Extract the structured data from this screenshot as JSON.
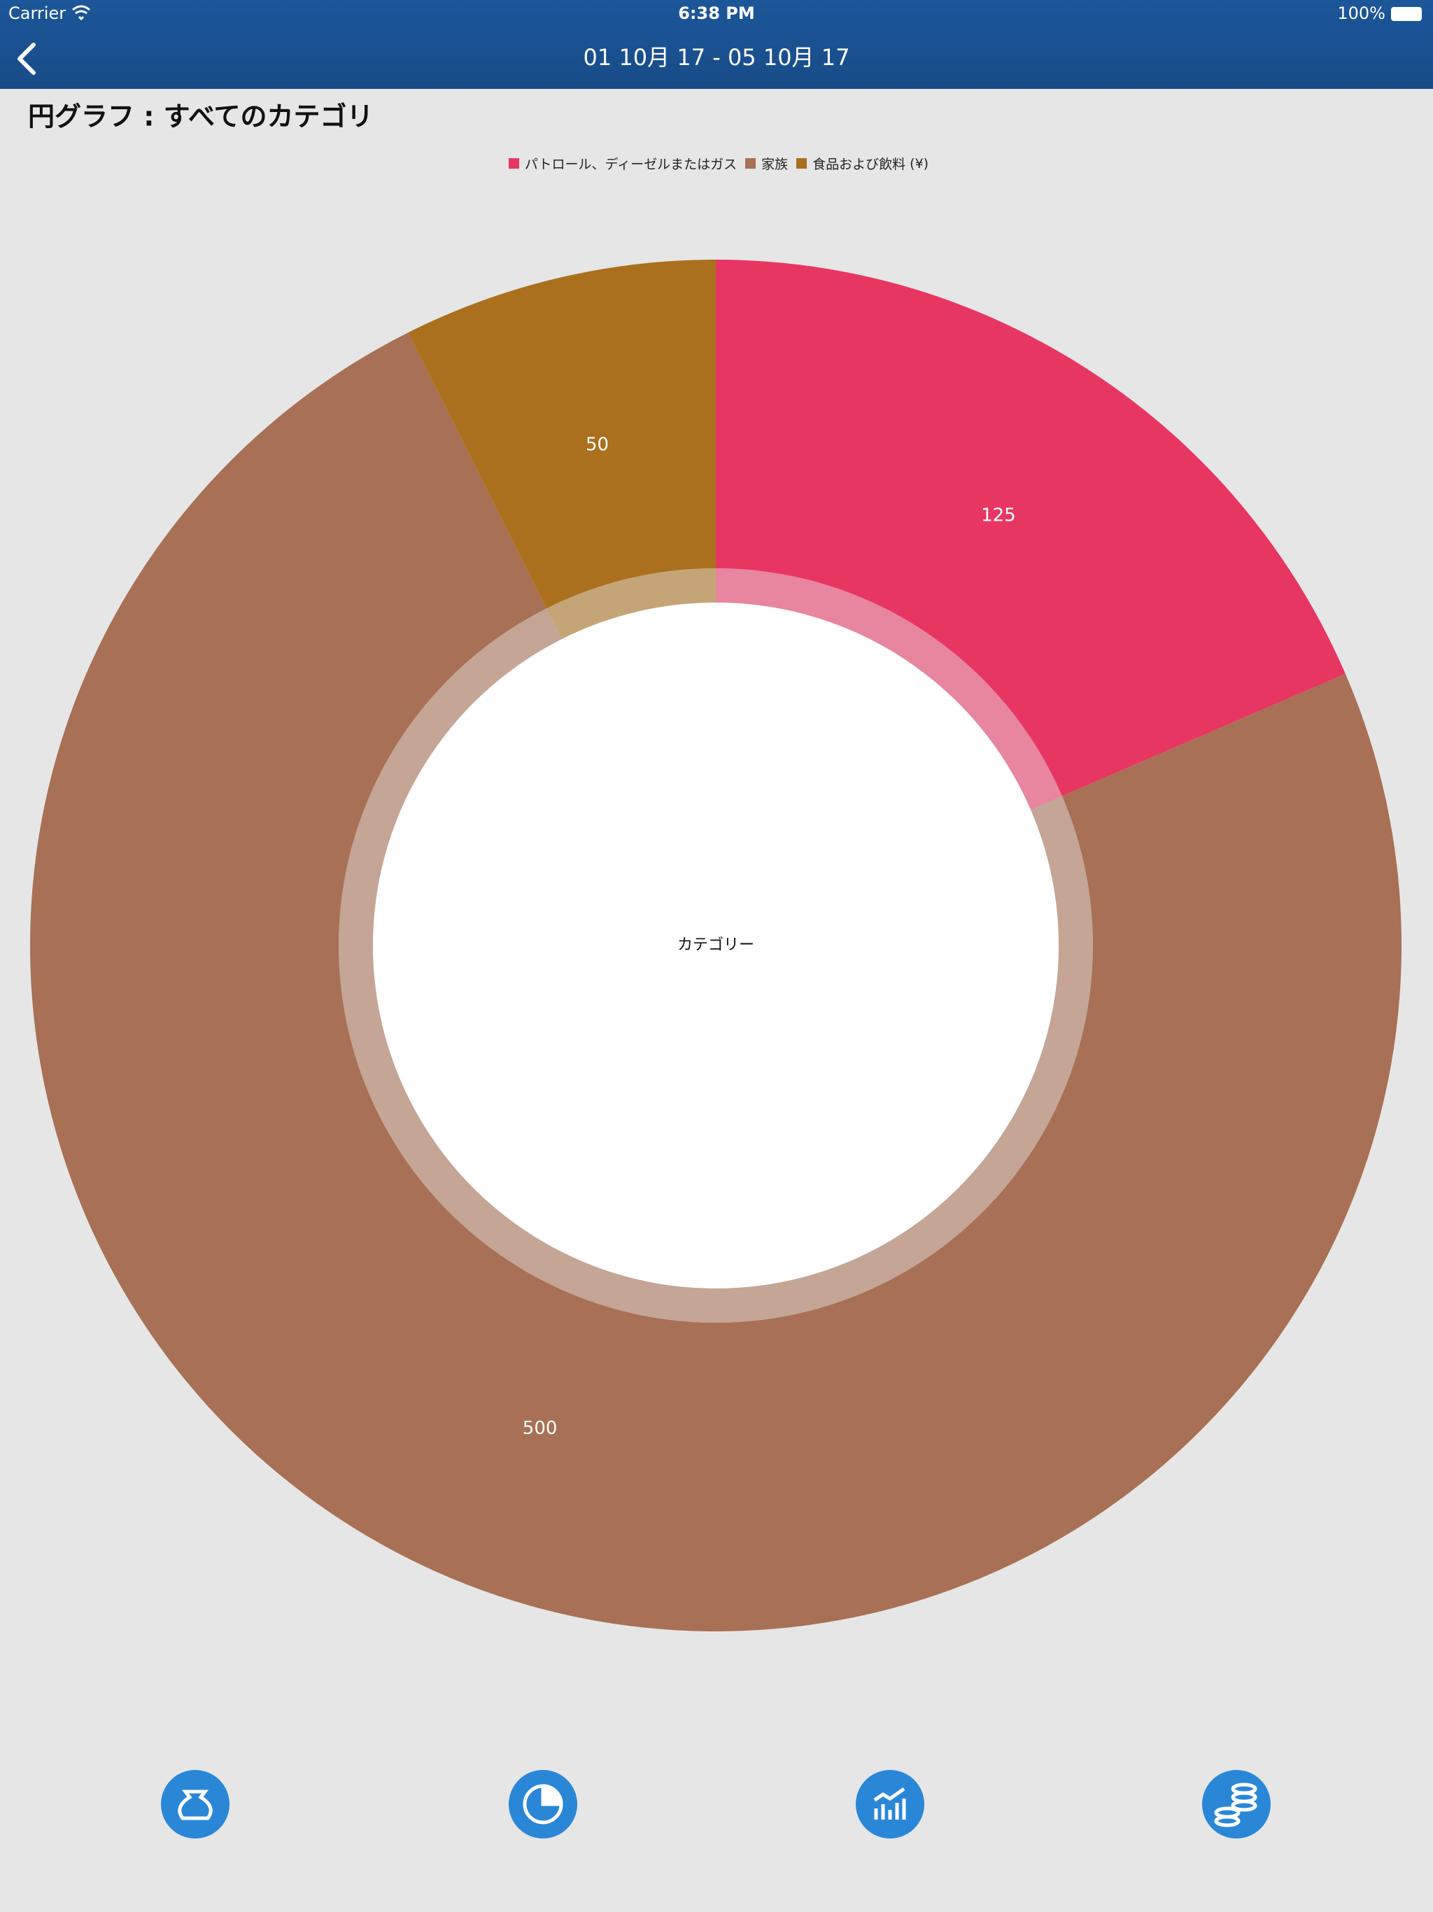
{
  "status_bar": {
    "carrier": "Carrier",
    "time": "6:38 PM",
    "battery": "100%"
  },
  "nav_bar": {
    "title": "01 10月 17 - 05 10月 17"
  },
  "chart_data": {
    "type": "pie",
    "title": "円グラフ : すべてのカテゴリ",
    "categories": [
      "パトロール、ディーゼルまたはガス",
      "家族",
      "食品および飲料"
    ],
    "legend_unit": "(¥)",
    "values": [
      125,
      500,
      50
    ],
    "colors": [
      "#e83663",
      "#a87054",
      "#aa701d"
    ],
    "center_label": "カテゴリー"
  }
}
